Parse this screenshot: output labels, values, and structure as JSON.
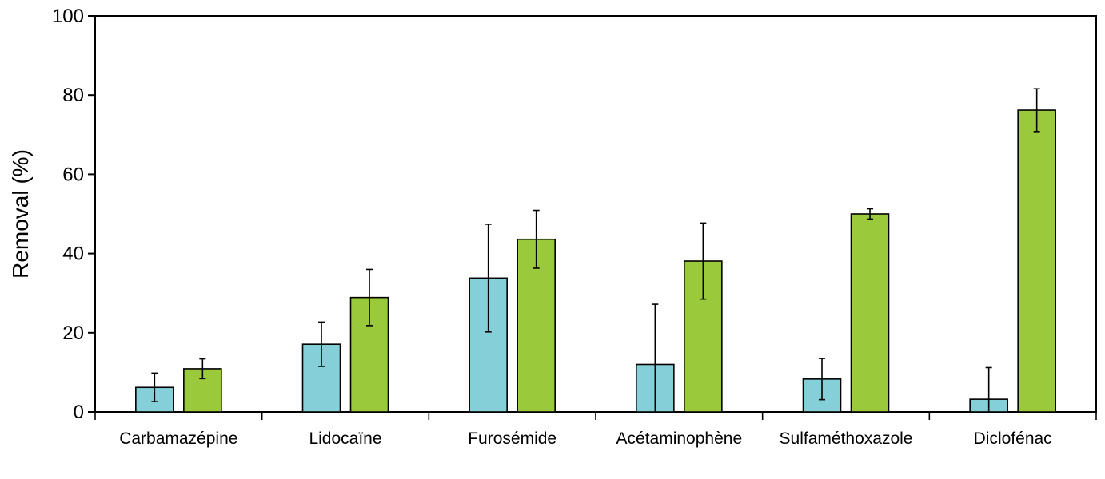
{
  "chart_data": {
    "type": "bar",
    "title": "",
    "xlabel": "",
    "ylabel": "Removal (%)",
    "ylim": [
      0,
      100
    ],
    "yticks": [
      0,
      20,
      40,
      60,
      80,
      100
    ],
    "categories": [
      "Carbamazépine",
      "Lidocaïne",
      "Furosémide",
      "Acétaminophène",
      "Sulfaméthoxazole",
      "Diclofénac"
    ],
    "series": [
      {
        "color": "#85cfd8",
        "values": [
          6.2,
          17.1,
          33.8,
          12.0,
          8.3,
          3.2
        ],
        "error": [
          3.6,
          5.6,
          13.6,
          15.2,
          5.2,
          8.0
        ]
      },
      {
        "color": "#9bc93c",
        "values": [
          10.9,
          28.9,
          43.6,
          38.1,
          50.0,
          76.2
        ],
        "error": [
          2.5,
          7.1,
          7.3,
          9.6,
          1.3,
          5.4
        ]
      }
    ],
    "grid": false,
    "legend": "none"
  }
}
